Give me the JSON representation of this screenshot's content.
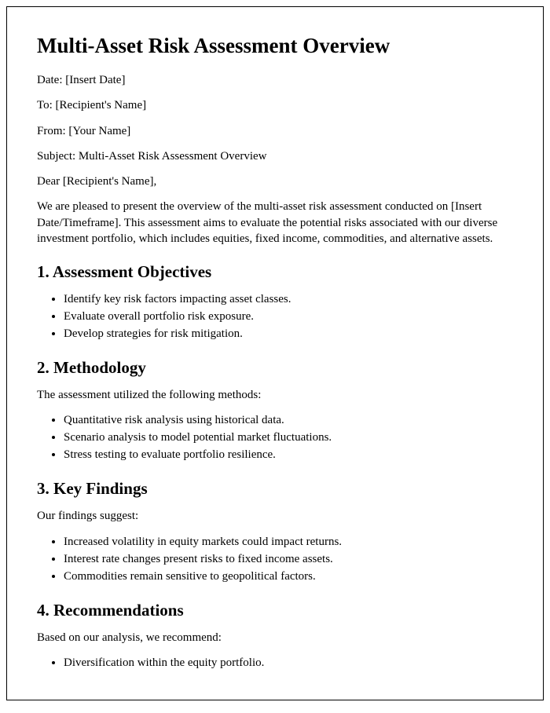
{
  "title": "Multi-Asset Risk Assessment Overview",
  "header": {
    "date": "Date: [Insert Date]",
    "to": "To: [Recipient's Name]",
    "from": "From: [Your Name]",
    "subject": "Subject: Multi-Asset Risk Assessment Overview",
    "salutation": "Dear [Recipient's Name],"
  },
  "intro": "We are pleased to present the overview of the multi-asset risk assessment conducted on [Insert Date/Timeframe]. This assessment aims to evaluate the potential risks associated with our diverse investment portfolio, which includes equities, fixed income, commodities, and alternative assets.",
  "sections": {
    "objectives": {
      "heading": "1. Assessment Objectives",
      "items": [
        "Identify key risk factors impacting asset classes.",
        "Evaluate overall portfolio risk exposure.",
        "Develop strategies for risk mitigation."
      ]
    },
    "methodology": {
      "heading": "2. Methodology",
      "lead": "The assessment utilized the following methods:",
      "items": [
        "Quantitative risk analysis using historical data.",
        "Scenario analysis to model potential market fluctuations.",
        "Stress testing to evaluate portfolio resilience."
      ]
    },
    "findings": {
      "heading": "3. Key Findings",
      "lead": "Our findings suggest:",
      "items": [
        "Increased volatility in equity markets could impact returns.",
        "Interest rate changes present risks to fixed income assets.",
        "Commodities remain sensitive to geopolitical factors."
      ]
    },
    "recommendations": {
      "heading": "4. Recommendations",
      "lead": "Based on our analysis, we recommend:",
      "items": [
        "Diversification within the equity portfolio."
      ]
    }
  }
}
